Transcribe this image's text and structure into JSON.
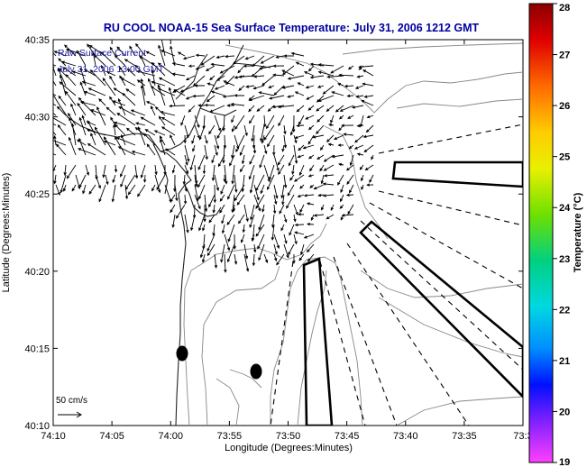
{
  "title": "RU COOL   NOAA-15  Sea Surface Temperature:  July 31, 2006 1212 GMT",
  "info": {
    "line1": "Raw Surface Current",
    "line2": "July 31, 2006 13:00 GMT"
  },
  "axes": {
    "xlabel": "Longitude (Degrees:Minutes)",
    "ylabel": "Latitude (Degrees:Minutes)",
    "x_ticks": [
      "74:10",
      "74:05",
      "74:00",
      "73:55",
      "73:50",
      "73:45",
      "73:40",
      "73:35",
      "73:3"
    ],
    "y_ticks": [
      "40:35",
      "40:30",
      "40:25",
      "40:20",
      "40:15",
      "40:10"
    ]
  },
  "colorbar": {
    "label": "Temperature (°C)",
    "ticks": [
      "28",
      "27",
      "26",
      "25",
      "24",
      "23",
      "22",
      "21",
      "20",
      "19"
    ],
    "min": 19,
    "max": 28
  },
  "scale_arrow": {
    "label": "50 cm/s"
  },
  "colors": {
    "title": "#0000a0",
    "info_text": "#1a1aa0",
    "coast": "#222222",
    "contour": "#888888",
    "vectors": "#000000"
  },
  "icons": [
    "current-vector-arrow",
    "scale-arrow",
    "buoy-marker"
  ]
}
